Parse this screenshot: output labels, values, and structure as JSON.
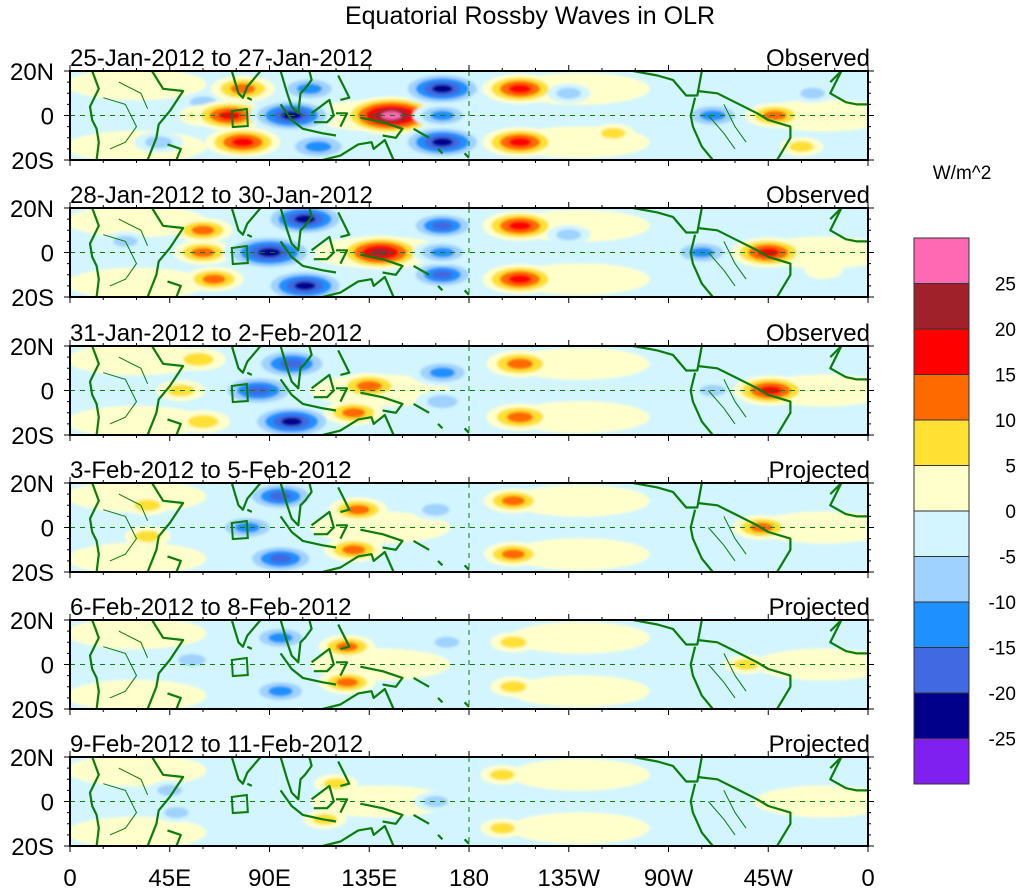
{
  "chart_data": {
    "type": "heatmap",
    "title": "Equatorial Rossby Waves in OLR",
    "units_label": "W/m^2",
    "x_ticks": [
      "0",
      "45E",
      "90E",
      "135E",
      "180",
      "135W",
      "90W",
      "45W",
      "0"
    ],
    "x_tick_lons": [
      0,
      45,
      90,
      135,
      180,
      225,
      270,
      315,
      360
    ],
    "y_ticks": [
      "20N",
      "0",
      "20S"
    ],
    "y_tick_lats": [
      20,
      0,
      -20
    ],
    "xlim": [
      0,
      360
    ],
    "ylim": [
      -20,
      20
    ],
    "colorbar": {
      "levels": [
        25,
        20,
        15,
        10,
        5,
        0,
        -5,
        -10,
        -15,
        -20,
        -25
      ],
      "level_labels": [
        "25",
        "20",
        "15",
        "10",
        "5",
        "0",
        "-5",
        "-10",
        "-15",
        "-20",
        "-25"
      ],
      "colors": [
        "#ff69b4",
        "#a0212a",
        "#ff0000",
        "#ff6a00",
        "#ffe033",
        "#ffffcc",
        "#d2f5ff",
        "#a0d2ff",
        "#1e90ff",
        "#4169e1",
        "#00008b",
        "#8020f0"
      ]
    },
    "panels": [
      {
        "period": "25-Jan-2012 to 27-Jan-2012",
        "status": "Observed",
        "anomalies": [
          {
            "lon": 40,
            "lat": -12,
            "value": -8
          },
          {
            "lon": 60,
            "lat": 6,
            "value": -7
          },
          {
            "lon": 60,
            "lat": 0,
            "value": 8
          },
          {
            "lon": 78,
            "lat": 12,
            "value": 14
          },
          {
            "lon": 72,
            "lat": 0,
            "value": 18
          },
          {
            "lon": 78,
            "lat": -12,
            "value": 18
          },
          {
            "lon": 100,
            "lat": 0,
            "value": -22
          },
          {
            "lon": 108,
            "lat": 12,
            "value": -14
          },
          {
            "lon": 112,
            "lat": -14,
            "value": -15
          },
          {
            "lon": 145,
            "lat": 0,
            "value": 27
          },
          {
            "lon": 168,
            "lat": 12,
            "value": -22
          },
          {
            "lon": 168,
            "lat": -12,
            "value": -22
          },
          {
            "lon": 168,
            "lat": 0,
            "value": -12
          },
          {
            "lon": 203,
            "lat": 12,
            "value": 18
          },
          {
            "lon": 203,
            "lat": -12,
            "value": 18
          },
          {
            "lon": 225,
            "lat": 10,
            "value": -6
          },
          {
            "lon": 245,
            "lat": -8,
            "value": 6
          },
          {
            "lon": 290,
            "lat": 0,
            "value": -14
          },
          {
            "lon": 318,
            "lat": 0,
            "value": 12
          },
          {
            "lon": 335,
            "lat": 10,
            "value": -6
          },
          {
            "lon": 330,
            "lat": -14,
            "value": 6
          }
        ]
      },
      {
        "period": "28-Jan-2012 to 30-Jan-2012",
        "status": "Observed",
        "anomalies": [
          {
            "lon": 25,
            "lat": 5,
            "value": -6
          },
          {
            "lon": 60,
            "lat": 10,
            "value": 12
          },
          {
            "lon": 60,
            "lat": 0,
            "value": 12
          },
          {
            "lon": 65,
            "lat": -12,
            "value": 12
          },
          {
            "lon": 90,
            "lat": 0,
            "value": -25
          },
          {
            "lon": 106,
            "lat": 15,
            "value": -22
          },
          {
            "lon": 106,
            "lat": -15,
            "value": -22
          },
          {
            "lon": 140,
            "lat": 0,
            "value": 22
          },
          {
            "lon": 168,
            "lat": 12,
            "value": -16
          },
          {
            "lon": 168,
            "lat": -10,
            "value": -16
          },
          {
            "lon": 168,
            "lat": 0,
            "value": -12
          },
          {
            "lon": 203,
            "lat": 12,
            "value": 18
          },
          {
            "lon": 203,
            "lat": -12,
            "value": 18
          },
          {
            "lon": 225,
            "lat": 8,
            "value": -6
          },
          {
            "lon": 285,
            "lat": 0,
            "value": -13
          },
          {
            "lon": 315,
            "lat": 0,
            "value": 18
          },
          {
            "lon": 340,
            "lat": -8,
            "value": 4
          }
        ]
      },
      {
        "period": "31-Jan-2012 to 2-Feb-2012",
        "status": "Observed",
        "anomalies": [
          {
            "lon": 50,
            "lat": 0,
            "value": 8
          },
          {
            "lon": 58,
            "lat": 14,
            "value": 10
          },
          {
            "lon": 60,
            "lat": -14,
            "value": 10
          },
          {
            "lon": 85,
            "lat": 0,
            "value": -20
          },
          {
            "lon": 100,
            "lat": 12,
            "value": -20
          },
          {
            "lon": 100,
            "lat": -14,
            "value": -22
          },
          {
            "lon": 135,
            "lat": 2,
            "value": 14
          },
          {
            "lon": 128,
            "lat": -10,
            "value": 12
          },
          {
            "lon": 168,
            "lat": 8,
            "value": -14
          },
          {
            "lon": 168,
            "lat": -5,
            "value": -10
          },
          {
            "lon": 203,
            "lat": 12,
            "value": 15
          },
          {
            "lon": 203,
            "lat": -12,
            "value": 15
          },
          {
            "lon": 290,
            "lat": 0,
            "value": -7
          },
          {
            "lon": 316,
            "lat": 0,
            "value": 18
          }
        ]
      },
      {
        "period": "3-Feb-2012 to 5-Feb-2012",
        "status": "Projected",
        "anomalies": [
          {
            "lon": 35,
            "lat": 10,
            "value": 7
          },
          {
            "lon": 35,
            "lat": -4,
            "value": 7
          },
          {
            "lon": 80,
            "lat": 0,
            "value": -14
          },
          {
            "lon": 95,
            "lat": 14,
            "value": -18
          },
          {
            "lon": 95,
            "lat": -14,
            "value": -18
          },
          {
            "lon": 130,
            "lat": 8,
            "value": 12
          },
          {
            "lon": 128,
            "lat": -10,
            "value": 12
          },
          {
            "lon": 165,
            "lat": 8,
            "value": -8
          },
          {
            "lon": 200,
            "lat": 12,
            "value": 12
          },
          {
            "lon": 200,
            "lat": -12,
            "value": 12
          },
          {
            "lon": 312,
            "lat": 0,
            "value": 12
          }
        ]
      },
      {
        "period": "6-Feb-2012 to 8-Feb-2012",
        "status": "Projected",
        "anomalies": [
          {
            "lon": 55,
            "lat": 2,
            "value": -8
          },
          {
            "lon": 95,
            "lat": 12,
            "value": -13
          },
          {
            "lon": 95,
            "lat": -12,
            "value": -13
          },
          {
            "lon": 125,
            "lat": 8,
            "value": 11
          },
          {
            "lon": 125,
            "lat": -8,
            "value": 11
          },
          {
            "lon": 170,
            "lat": 10,
            "value": -6
          },
          {
            "lon": 200,
            "lat": 10,
            "value": 7
          },
          {
            "lon": 200,
            "lat": -10,
            "value": 7
          },
          {
            "lon": 305,
            "lat": 0,
            "value": 6
          }
        ]
      },
      {
        "period": "9-Feb-2012 to 11-Feb-2012",
        "status": "Projected",
        "anomalies": [
          {
            "lon": 45,
            "lat": 5,
            "value": -6
          },
          {
            "lon": 48,
            "lat": -5,
            "value": -6
          },
          {
            "lon": 120,
            "lat": 8,
            "value": 6
          },
          {
            "lon": 115,
            "lat": -8,
            "value": 6
          },
          {
            "lon": 165,
            "lat": 0,
            "value": -6
          },
          {
            "lon": 195,
            "lat": 12,
            "value": 6
          },
          {
            "lon": 195,
            "lat": -12,
            "value": 6
          }
        ]
      }
    ]
  }
}
